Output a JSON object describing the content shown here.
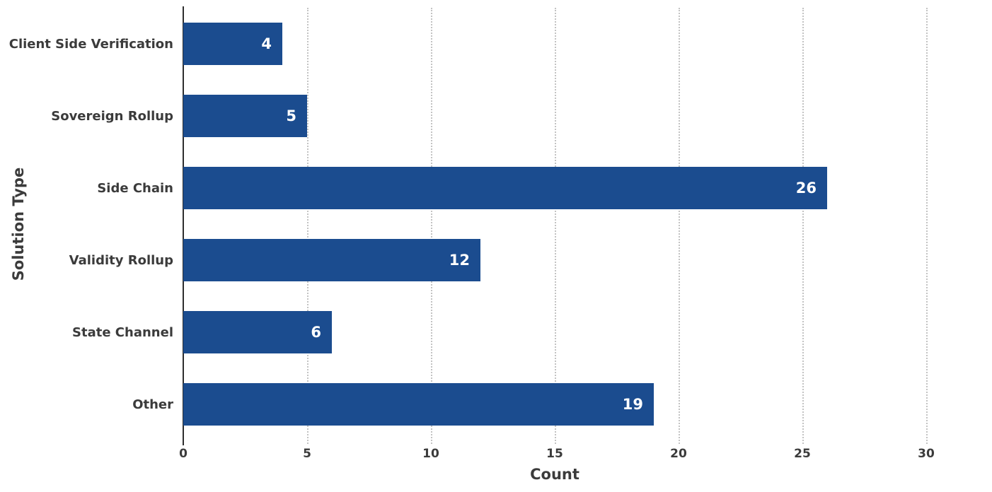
{
  "chart_data": {
    "type": "bar",
    "orientation": "horizontal",
    "title": "",
    "xlabel": "Count",
    "ylabel": "Solution Type",
    "categories": [
      "Client Side Verification",
      "Sovereign Rollup",
      "Side Chain",
      "Validity Rollup",
      "State Channel",
      "Other"
    ],
    "values": [
      4,
      5,
      26,
      12,
      6,
      19
    ],
    "xlim": [
      0,
      30
    ],
    "xticks": [
      0,
      5,
      10,
      15,
      20,
      25,
      30
    ],
    "grid": "vertical-dotted",
    "legend": "none",
    "bar_color": "#1b4c8f",
    "value_label_color": "#ffffff",
    "axis_color": "#2e2e2e",
    "gridline_color": "#c3c3c3",
    "text_color": "#3b3b3b"
  }
}
